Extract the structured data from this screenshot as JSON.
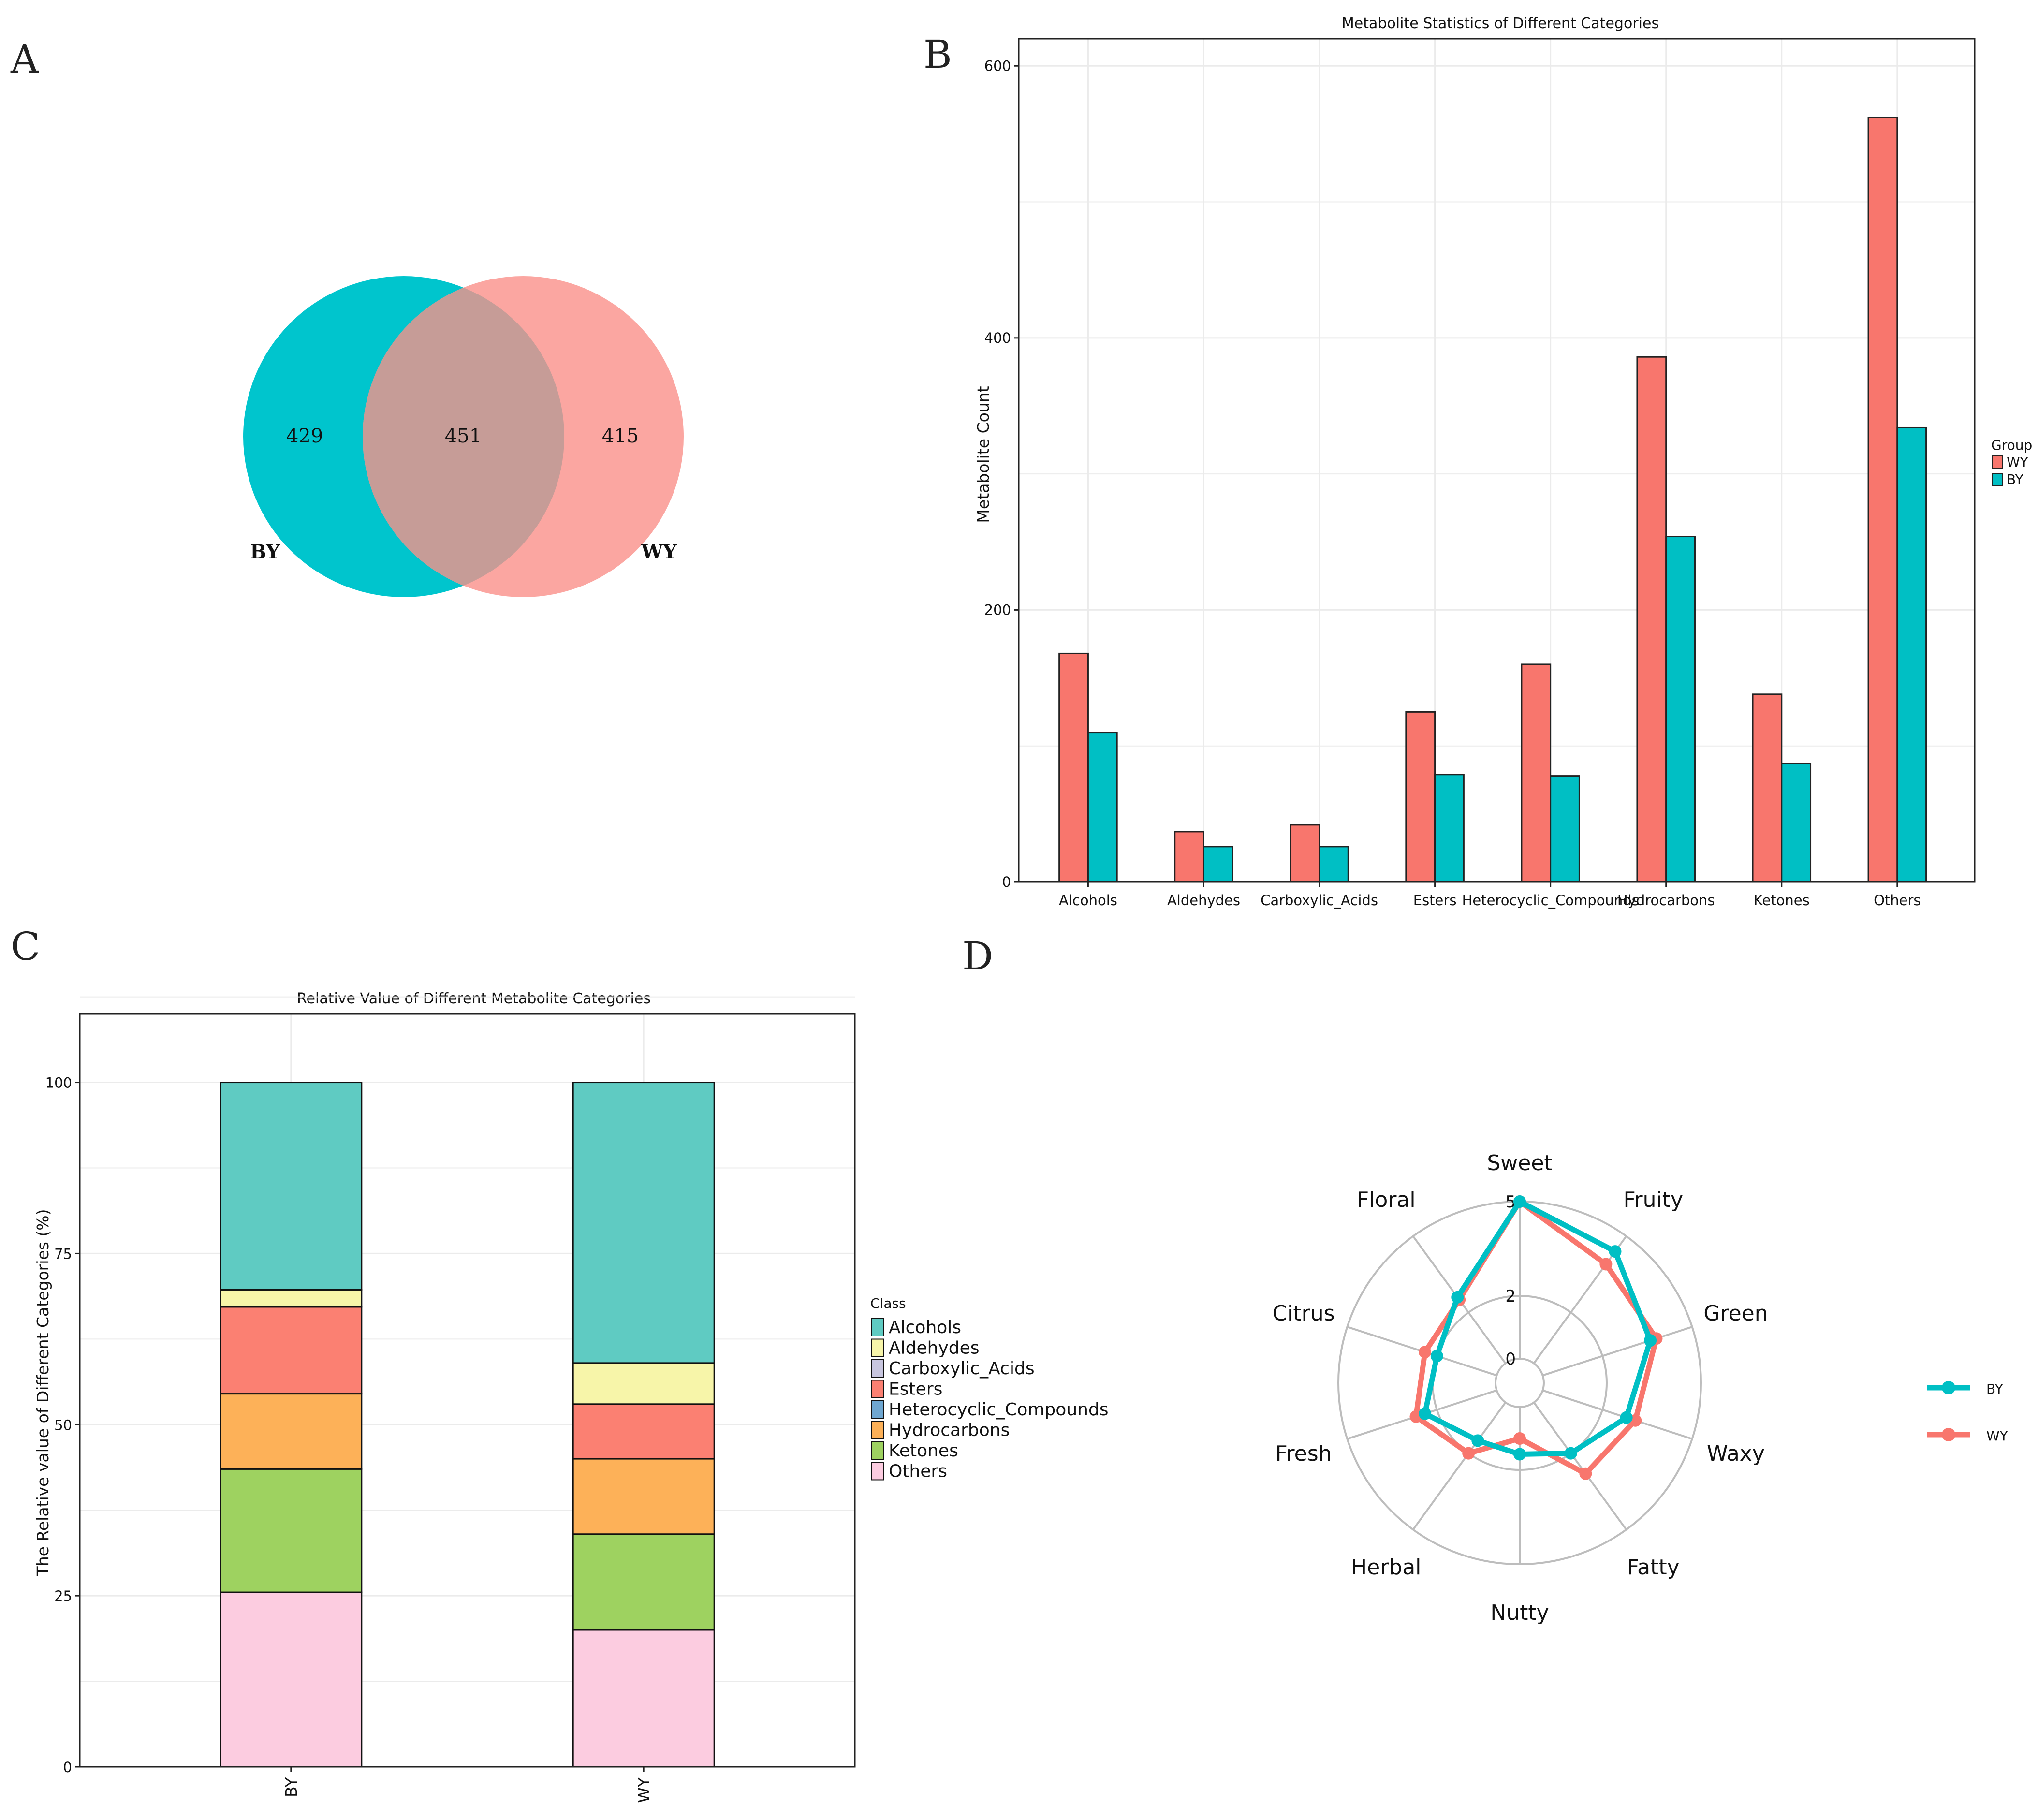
{
  "panels": {
    "a": "A",
    "b": "B",
    "c": "C",
    "d": "D"
  },
  "colors": {
    "wy": "#f8766d",
    "by": "#00bfc4",
    "venn_by": "#00c5cd",
    "venn_wy": "#fba6a1",
    "venn_overlap": "#c69c97"
  },
  "chart_data": [
    {
      "type": "venn",
      "sets": [
        "BY",
        "WY"
      ],
      "only_by": "429",
      "intersection": "451",
      "only_wy": "415"
    },
    {
      "type": "bar",
      "title": "Metabolite Statistics of Different Categories",
      "xlabel": "",
      "ylabel": "Metabolite Count",
      "ylim": [
        0,
        620
      ],
      "yticks": [
        "0",
        "200",
        "400",
        "600"
      ],
      "categories": [
        "Alcohols",
        "Aldehydes",
        "Carboxylic_Acids",
        "Esters",
        "Heterocyclic_Compounds",
        "Hydrocarbons",
        "Ketones",
        "Others"
      ],
      "legend_title": "Group",
      "series": [
        {
          "name": "WY",
          "values": [
            168,
            37,
            42,
            125,
            160,
            386,
            138,
            562
          ]
        },
        {
          "name": "BY",
          "values": [
            110,
            26,
            26,
            79,
            78,
            254,
            87,
            334
          ]
        }
      ]
    },
    {
      "type": "bar",
      "stacked": true,
      "title": "Relative Value of Different Metabolite Categories",
      "ylabel": "The Relative value of Different Categories (%)",
      "ylim": [
        0,
        110
      ],
      "yticks": [
        "0",
        "25",
        "50",
        "75",
        "100"
      ],
      "categories": [
        "BY",
        "WY"
      ],
      "legend_title": "Class",
      "classes": [
        "Alcohols",
        "Aldehydes",
        "Carboxylic_Acids",
        "Esters",
        "Heterocyclic_Compounds",
        "Hydrocarbons",
        "Ketones",
        "Others"
      ],
      "class_colors": [
        "#5fcbc2",
        "#f7f5a9",
        "#c8c6df",
        "#fb8072",
        "#6fa7d1",
        "#fdb158",
        "#9ed260",
        "#fccce0"
      ],
      "series": [
        {
          "name": "Others",
          "values": [
            25.5,
            20
          ]
        },
        {
          "name": "Ketones",
          "values": [
            18,
            14
          ]
        },
        {
          "name": "Hydrocarbons",
          "values": [
            11,
            11
          ]
        },
        {
          "name": "Heterocyclic_Compounds",
          "values": [
            0,
            0
          ]
        },
        {
          "name": "Esters",
          "values": [
            12.7,
            8
          ]
        },
        {
          "name": "Carboxylic_Acids",
          "values": [
            0,
            0
          ]
        },
        {
          "name": "Aldehydes",
          "values": [
            2.5,
            6
          ]
        },
        {
          "name": "Alcohols",
          "values": [
            30.3,
            41
          ]
        }
      ]
    },
    {
      "type": "radar",
      "axes": [
        "Sweet",
        "Fruity",
        "Green",
        "Waxy",
        "Fatty",
        "Nutty",
        "Herbal",
        "Fresh",
        "Citrus",
        "Floral"
      ],
      "rmax": 5,
      "ring_labels": [
        "0",
        "2",
        "5"
      ],
      "series": [
        {
          "name": "BY",
          "values": [
            5,
            4.4,
            3.6,
            2.8,
            2.0,
            1.5,
            1.5,
            2.4,
            2.0,
            2.6
          ]
        },
        {
          "name": "WY",
          "values": [
            5,
            3.9,
            3.8,
            3.1,
            2.8,
            1.0,
            2.0,
            2.7,
            2.4,
            2.5
          ]
        }
      ]
    }
  ]
}
